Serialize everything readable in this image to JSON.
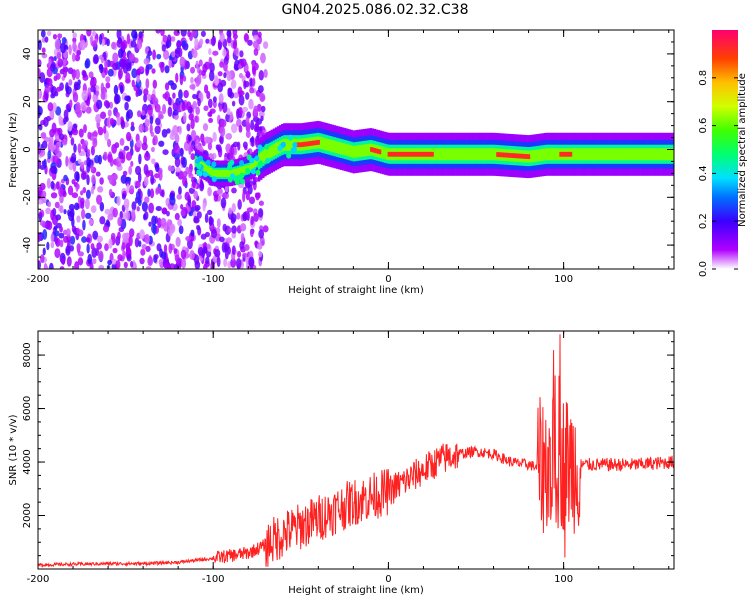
{
  "title": "GN04.2025.086.02.32.C38",
  "chart_data": [
    {
      "type": "heatmap",
      "xlabel": "Height of straight line (km)",
      "ylabel": "Frequency (Hz)",
      "xlim": [
        -200,
        163
      ],
      "ylim": [
        -50,
        50
      ],
      "x_ticks": [
        -200,
        -100,
        0,
        100
      ],
      "y_ticks": [
        -40,
        -20,
        0,
        20,
        40
      ],
      "colorbar": {
        "label": "Normalized spectral amplitude",
        "range": [
          0,
          1
        ],
        "ticks": [
          "0.0",
          "0.2",
          "0.4",
          "0.6",
          "0.8"
        ],
        "colormap": "rainbow"
      },
      "features": {
        "noise_region_x": [
          -200,
          -80
        ],
        "signal_trace": [
          {
            "x": -110,
            "y": -5
          },
          {
            "x": -100,
            "y": -10
          },
          {
            "x": -90,
            "y": -10
          },
          {
            "x": -80,
            "y": -8
          },
          {
            "x": -70,
            "y": -2
          },
          {
            "x": -60,
            "y": 2
          },
          {
            "x": -50,
            "y": 2
          },
          {
            "x": -40,
            "y": 3
          },
          {
            "x": -30,
            "y": 1
          },
          {
            "x": -20,
            "y": -1
          },
          {
            "x": -10,
            "y": 0
          },
          {
            "x": 0,
            "y": -2
          },
          {
            "x": 20,
            "y": -2
          },
          {
            "x": 60,
            "y": -2
          },
          {
            "x": 80,
            "y": -3
          },
          {
            "x": 90,
            "y": -2
          },
          {
            "x": 100,
            "y": -2
          },
          {
            "x": 130,
            "y": -2
          },
          {
            "x": 163,
            "y": -2
          }
        ]
      }
    },
    {
      "type": "line",
      "xlabel": "Height of straight line (km)",
      "ylabel": "SNR (10 * v/v)",
      "xlim": [
        -200,
        163
      ],
      "ylim": [
        0,
        8900
      ],
      "x_ticks": [
        -200,
        -100,
        0,
        100
      ],
      "y_ticks": [
        2000,
        4000,
        6000,
        8000
      ],
      "color": "#ff2020",
      "series": [
        {
          "x": [
            -200,
            -180,
            -160,
            -140,
            -120,
            -100,
            -90,
            -80,
            -70,
            -60,
            -50,
            -40,
            -30,
            -20,
            -10,
            0,
            10,
            20,
            30,
            40,
            50,
            60,
            70,
            80,
            85,
            90,
            95,
            100,
            105,
            110,
            120,
            140,
            163
          ],
          "values": [
            150,
            180,
            200,
            200,
            250,
            400,
            500,
            600,
            900,
            1300,
            1600,
            1900,
            2200,
            2500,
            2700,
            2900,
            3300,
            3700,
            4100,
            4300,
            4400,
            4300,
            4000,
            3900,
            3800,
            3900,
            4000,
            4000,
            3900,
            3900,
            3900,
            3900,
            4000
          ]
        }
      ]
    }
  ]
}
